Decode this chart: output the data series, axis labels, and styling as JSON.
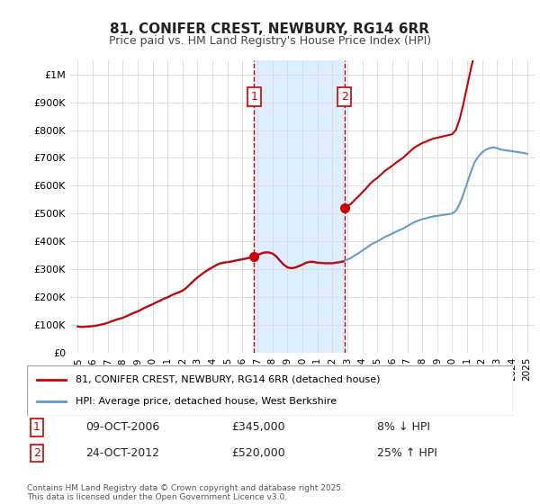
{
  "title": "81, CONIFER CREST, NEWBURY, RG14 6RR",
  "subtitle": "Price paid vs. HM Land Registry's House Price Index (HPI)",
  "hpi_label": "HPI: Average price, detached house, West Berkshire",
  "property_label": "81, CONIFER CREST, NEWBURY, RG14 6RR (detached house)",
  "red_color": "#cc0000",
  "blue_color": "#6699cc",
  "shading_color": "#ddeeff",
  "dashed_line_color": "#cc0000",
  "background_color": "#ffffff",
  "grid_color": "#dddddd",
  "ylim": [
    0,
    1050000
  ],
  "yticks": [
    0,
    100000,
    200000,
    300000,
    400000,
    500000,
    600000,
    700000,
    800000,
    900000,
    1000000
  ],
  "ytick_labels": [
    "£0",
    "£100K",
    "£200K",
    "£300K",
    "£400K",
    "£500K",
    "£600K",
    "£700K",
    "£800K",
    "£900K",
    "£1M"
  ],
  "xlim_start": 1994.5,
  "xlim_end": 2025.5,
  "xticks": [
    1995,
    1996,
    1997,
    1998,
    1999,
    2000,
    2001,
    2002,
    2003,
    2004,
    2005,
    2006,
    2007,
    2008,
    2009,
    2010,
    2011,
    2012,
    2013,
    2014,
    2015,
    2016,
    2017,
    2018,
    2019,
    2020,
    2021,
    2022,
    2023,
    2024,
    2025
  ],
  "transaction1_x": 2006.78,
  "transaction1_y": 345000,
  "transaction1_label": "1",
  "transaction1_date": "09-OCT-2006",
  "transaction1_price": "£345,000",
  "transaction1_hpi": "8% ↓ HPI",
  "transaction2_x": 2012.81,
  "transaction2_y": 520000,
  "transaction2_label": "2",
  "transaction2_date": "24-OCT-2012",
  "transaction2_price": "£520,000",
  "transaction2_hpi": "25% ↑ HPI",
  "footer": "Contains HM Land Registry data © Crown copyright and database right 2025.\nThis data is licensed under the Open Government Licence v3.0.",
  "hpi_data_x": [
    1995.0,
    1995.25,
    1995.5,
    1995.75,
    1996.0,
    1996.25,
    1996.5,
    1996.75,
    1997.0,
    1997.25,
    1997.5,
    1997.75,
    1998.0,
    1998.25,
    1998.5,
    1998.75,
    1999.0,
    1999.25,
    1999.5,
    1999.75,
    2000.0,
    2000.25,
    2000.5,
    2000.75,
    2001.0,
    2001.25,
    2001.5,
    2001.75,
    2002.0,
    2002.25,
    2002.5,
    2002.75,
    2003.0,
    2003.25,
    2003.5,
    2003.75,
    2004.0,
    2004.25,
    2004.5,
    2004.75,
    2005.0,
    2005.25,
    2005.5,
    2005.75,
    2006.0,
    2006.25,
    2006.5,
    2006.75,
    2007.0,
    2007.25,
    2007.5,
    2007.75,
    2008.0,
    2008.25,
    2008.5,
    2008.75,
    2009.0,
    2009.25,
    2009.5,
    2009.75,
    2010.0,
    2010.25,
    2010.5,
    2010.75,
    2011.0,
    2011.25,
    2011.5,
    2011.75,
    2012.0,
    2012.25,
    2012.5,
    2012.75,
    2013.0,
    2013.25,
    2013.5,
    2013.75,
    2014.0,
    2014.25,
    2014.5,
    2014.75,
    2015.0,
    2015.25,
    2015.5,
    2015.75,
    2016.0,
    2016.25,
    2016.5,
    2016.75,
    2017.0,
    2017.25,
    2017.5,
    2017.75,
    2018.0,
    2018.25,
    2018.5,
    2018.75,
    2019.0,
    2019.25,
    2019.5,
    2019.75,
    2020.0,
    2020.25,
    2020.5,
    2020.75,
    2021.0,
    2021.25,
    2021.5,
    2021.75,
    2022.0,
    2022.25,
    2022.5,
    2022.75,
    2023.0,
    2023.25,
    2023.5,
    2023.75,
    2024.0,
    2024.25,
    2024.5,
    2024.75,
    2025.0
  ],
  "hpi_data_y": [
    95000,
    93000,
    94000,
    95000,
    96000,
    98000,
    101000,
    104000,
    108000,
    113000,
    118000,
    122000,
    126000,
    132000,
    138000,
    144000,
    149000,
    156000,
    163000,
    169000,
    175000,
    182000,
    188000,
    195000,
    200000,
    207000,
    213000,
    218000,
    224000,
    234000,
    247000,
    260000,
    272000,
    282000,
    292000,
    301000,
    308000,
    316000,
    322000,
    325000,
    327000,
    329000,
    332000,
    335000,
    337000,
    340000,
    343000,
    346000,
    352000,
    358000,
    362000,
    362000,
    358000,
    348000,
    332000,
    318000,
    308000,
    305000,
    307000,
    312000,
    318000,
    325000,
    328000,
    328000,
    325000,
    324000,
    323000,
    323000,
    323000,
    325000,
    327000,
    330000,
    335000,
    341000,
    350000,
    358000,
    367000,
    376000,
    386000,
    394000,
    400000,
    408000,
    416000,
    422000,
    428000,
    435000,
    441000,
    447000,
    455000,
    463000,
    470000,
    475000,
    480000,
    483000,
    487000,
    490000,
    492000,
    494000,
    496000,
    498000,
    500000,
    510000,
    535000,
    570000,
    610000,
    650000,
    685000,
    705000,
    720000,
    730000,
    735000,
    738000,
    735000,
    730000,
    728000,
    726000,
    724000,
    722000,
    720000,
    718000,
    715000
  ],
  "property_data_x": [
    2006.78,
    2012.81
  ],
  "property_data_y": [
    345000,
    520000
  ]
}
